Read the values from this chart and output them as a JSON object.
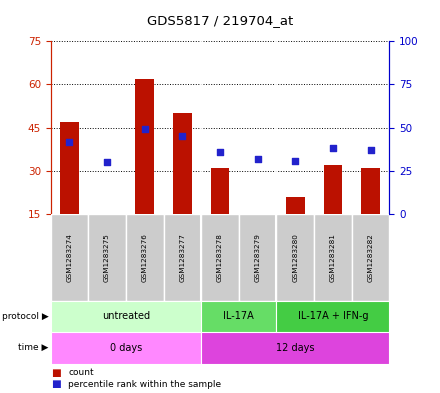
{
  "title": "GDS5817 / 219704_at",
  "samples": [
    "GSM1283274",
    "GSM1283275",
    "GSM1283276",
    "GSM1283277",
    "GSM1283278",
    "GSM1283279",
    "GSM1283280",
    "GSM1283281",
    "GSM1283282"
  ],
  "counts": [
    47,
    15,
    62,
    50,
    31,
    15,
    21,
    32,
    31
  ],
  "count_base": 15,
  "percentile_right": [
    42,
    30,
    49,
    45,
    36,
    32,
    31,
    38,
    37
  ],
  "ylim_left": [
    15,
    75
  ],
  "ylim_right": [
    0,
    100
  ],
  "yticks_left": [
    15,
    30,
    45,
    60,
    75
  ],
  "yticks_right": [
    0,
    25,
    50,
    75,
    100
  ],
  "bar_color": "#bb1100",
  "dot_color": "#2222cc",
  "bar_width": 0.5,
  "protocol_groups": [
    {
      "label": "untreated",
      "start": 0,
      "end": 4,
      "color": "#ccffcc"
    },
    {
      "label": "IL-17A",
      "start": 4,
      "end": 6,
      "color": "#66dd66"
    },
    {
      "label": "IL-17A + IFN-g",
      "start": 6,
      "end": 9,
      "color": "#44cc44"
    }
  ],
  "time_groups": [
    {
      "label": "0 days",
      "start": 0,
      "end": 4,
      "color": "#ff88ff"
    },
    {
      "label": "12 days",
      "start": 4,
      "end": 9,
      "color": "#dd44dd"
    }
  ],
  "protocol_label": "protocol",
  "time_label": "time",
  "legend_count_label": "count",
  "legend_pct_label": "percentile rank within the sample",
  "left_axis_color": "#cc2200",
  "right_axis_color": "#0000cc",
  "sample_bg": "#cccccc",
  "dividers": [
    3.5,
    5.5
  ]
}
